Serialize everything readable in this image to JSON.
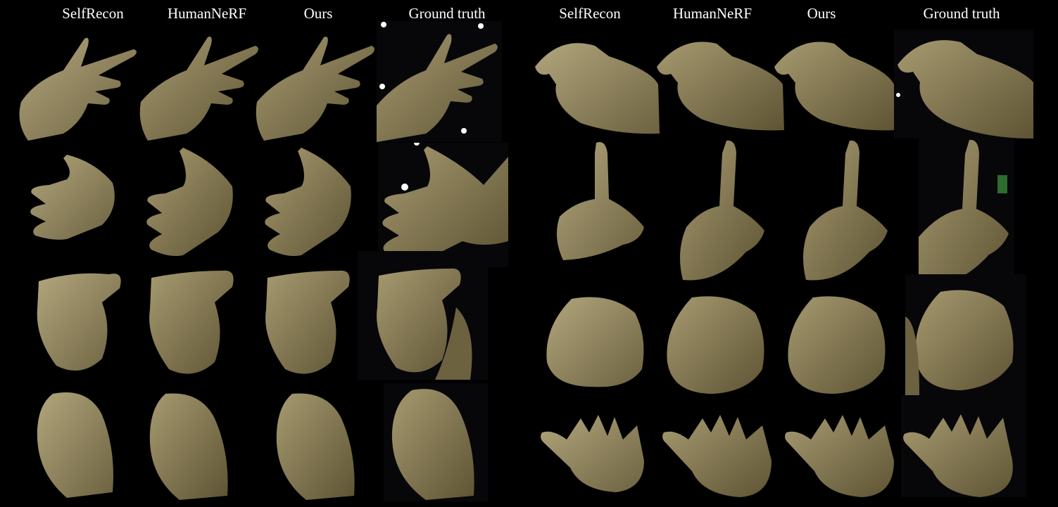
{
  "left_panel": {
    "headers": [
      "SelfRecon",
      "HumanNeRF",
      "Ours",
      "Ground truth"
    ]
  },
  "right_panel": {
    "headers": [
      "SelfRecon",
      "HumanNeRF",
      "Ours",
      "Ground truth"
    ]
  },
  "colors": {
    "background": "#000000",
    "skin": "#8f8460",
    "skin_shadow": "#5f5536",
    "skin_highlight": "#b2a67d",
    "selfrecon_skin": "#9e9368"
  },
  "rows": [
    {
      "pose": "pointing-hand-back-view",
      "pose_right": "pinch-side-view"
    },
    {
      "pose": "open-palm",
      "pose_right": "index-finger-up"
    },
    {
      "pose": "fist-thumb-up",
      "pose_right": "fist-side-view"
    },
    {
      "pose": "curled-fist",
      "pose_right": "spread-fingers-back-view"
    }
  ]
}
